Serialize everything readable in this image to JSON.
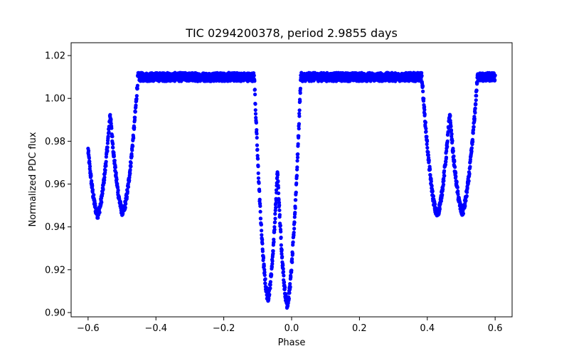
{
  "chart_data": {
    "type": "scatter",
    "title": "TIC 0294200378, period 2.9855 days",
    "xlabel": "Phase",
    "ylabel": "Normalized PDC flux",
    "xlim": [
      -0.65,
      0.65
    ],
    "ylim": [
      0.898,
      1.026
    ],
    "xticks": [
      -0.6,
      -0.4,
      -0.2,
      0.0,
      0.2,
      0.4,
      0.6
    ],
    "xtick_labels": [
      "−0.6",
      "−0.4",
      "−0.2",
      "0.0",
      "0.2",
      "0.4",
      "0.6"
    ],
    "yticks": [
      0.9,
      0.92,
      0.94,
      0.96,
      0.98,
      1.0,
      1.02
    ],
    "ytick_labels": [
      "0.90",
      "0.92",
      "0.94",
      "0.96",
      "0.98",
      "1.00",
      "1.02"
    ],
    "grid": false,
    "marker_color": "#0000ff",
    "series": [
      {
        "name": "flux",
        "x_range": [
          -0.6,
          0.6
        ],
        "baseline": 1.01,
        "eclipses": [
          {
            "center": -0.07,
            "depth_min": 0.907,
            "half_width": 0.04
          },
          {
            "center": -0.013,
            "depth_min": 0.904,
            "half_width": 0.04
          },
          {
            "center": -0.572,
            "depth_min": 0.946,
            "half_width": 0.045
          },
          {
            "center": -0.498,
            "depth_min": 0.947,
            "half_width": 0.045
          },
          {
            "center": 0.429,
            "depth_min": 0.946,
            "half_width": 0.045
          },
          {
            "center": 0.503,
            "depth_min": 0.947,
            "half_width": 0.045
          }
        ]
      }
    ]
  }
}
